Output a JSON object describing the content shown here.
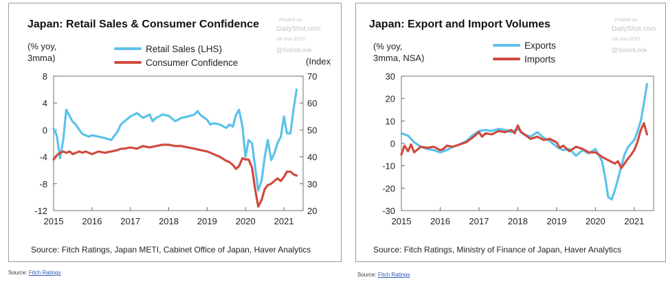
{
  "panels": [
    {
      "title": "Japan: Retail Sales & Consumer Confidence",
      "left_unit_lines": [
        "(% yoy,",
        "3mma)"
      ],
      "right_unit": "(Index)",
      "source": "Source: Fitch Ratings, Japan METI, Cabinet Office of Japan, Haver Analytics",
      "watermark": [
        "Posted on",
        "DailyShot.com",
        "28-Jun-2021",
        "@SobelLook"
      ],
      "footer": {
        "prefix": "Source:",
        "link": "Fitch Ratings"
      }
    },
    {
      "title": "Japan: Export and Import Volumes",
      "left_unit_lines": [
        "(% yoy,",
        "3mma, NSA)"
      ],
      "source": "Source: Fitch Ratings, Ministry of Finance of Japan, Haver Analytics",
      "watermark": [
        "Posted on",
        "DailyShot.com",
        "28-Jun-2021",
        "@SobelLook"
      ],
      "footer": {
        "prefix": "Source:",
        "link": "Fitch Ratings"
      }
    }
  ],
  "chart_data": [
    {
      "type": "line",
      "title": "Japan: Retail Sales & Consumer Confidence",
      "xlim": [
        2015.0,
        2021.5
      ],
      "x_ticks": [
        2015,
        2016,
        2017,
        2018,
        2019,
        2020,
        2021
      ],
      "ylim": [
        -12,
        8
      ],
      "y_ticks": [
        -12,
        -8,
        -4,
        0,
        4,
        8
      ],
      "y2lim": [
        20,
        70
      ],
      "y2_ticks": [
        20,
        30,
        40,
        50,
        60,
        70
      ],
      "grid": false,
      "legend": "top-center",
      "series": [
        {
          "name": "Retail Sales (LHS)",
          "axis": "left",
          "color": "#5bc2ea",
          "x": [
            2015.0,
            2015.08,
            2015.17,
            2015.25,
            2015.33,
            2015.42,
            2015.5,
            2015.58,
            2015.67,
            2015.75,
            2015.83,
            2015.92,
            2016.0,
            2016.17,
            2016.33,
            2016.5,
            2016.67,
            2016.75,
            2016.83,
            2017.0,
            2017.17,
            2017.33,
            2017.5,
            2017.58,
            2017.67,
            2017.75,
            2017.83,
            2018.0,
            2018.17,
            2018.33,
            2018.5,
            2018.67,
            2018.75,
            2018.83,
            2019.0,
            2019.08,
            2019.17,
            2019.33,
            2019.5,
            2019.58,
            2019.67,
            2019.75,
            2019.83,
            2019.92,
            2020.0,
            2020.08,
            2020.17,
            2020.25,
            2020.33,
            2020.42,
            2020.5,
            2020.58,
            2020.67,
            2020.75,
            2020.83,
            2020.92,
            2021.0,
            2021.08,
            2021.17,
            2021.25,
            2021.33
          ],
          "values": [
            0.2,
            -0.8,
            -4.2,
            -1.5,
            3.0,
            2.0,
            1.2,
            0.8,
            0.0,
            -0.6,
            -0.8,
            -1.0,
            -0.8,
            -1.0,
            -1.2,
            -1.5,
            -0.2,
            0.8,
            1.2,
            2.0,
            2.5,
            1.8,
            2.3,
            1.3,
            1.8,
            2.0,
            2.3,
            2.1,
            1.3,
            1.8,
            2.0,
            2.3,
            2.8,
            2.2,
            1.5,
            0.8,
            1.0,
            0.8,
            0.3,
            0.8,
            0.5,
            2.2,
            3.0,
            0.5,
            -4.0,
            -1.5,
            -2.0,
            -5.5,
            -9.0,
            -7.5,
            -4.0,
            -1.5,
            -4.5,
            -3.5,
            -2.0,
            -1.0,
            2.0,
            -0.5,
            -0.5,
            3.0,
            6.0
          ]
        },
        {
          "name": "Consumer Confidence",
          "axis": "right",
          "color": "#d04a3e",
          "x": [
            2015.0,
            2015.08,
            2015.17,
            2015.25,
            2015.33,
            2015.42,
            2015.5,
            2015.58,
            2015.67,
            2015.75,
            2015.83,
            2015.92,
            2016.0,
            2016.17,
            2016.33,
            2016.5,
            2016.67,
            2016.75,
            2016.83,
            2017.0,
            2017.17,
            2017.33,
            2017.5,
            2017.67,
            2017.83,
            2018.0,
            2018.17,
            2018.33,
            2018.5,
            2018.67,
            2018.83,
            2019.0,
            2019.17,
            2019.33,
            2019.5,
            2019.58,
            2019.67,
            2019.75,
            2019.83,
            2019.92,
            2020.0,
            2020.08,
            2020.17,
            2020.25,
            2020.33,
            2020.42,
            2020.5,
            2020.58,
            2020.67,
            2020.75,
            2020.83,
            2020.92,
            2021.0,
            2021.08,
            2021.17,
            2021.25,
            2021.33
          ],
          "values": [
            39.0,
            40.5,
            41.5,
            42.0,
            41.5,
            42.0,
            41.0,
            41.5,
            42.0,
            41.5,
            42.0,
            41.5,
            41.0,
            42.0,
            41.5,
            42.0,
            42.5,
            43.0,
            43.0,
            43.5,
            43.0,
            44.0,
            43.5,
            44.0,
            44.5,
            44.5,
            44.0,
            44.0,
            43.5,
            43.0,
            42.5,
            42.0,
            41.0,
            40.0,
            38.5,
            38.0,
            37.0,
            35.5,
            36.5,
            39.5,
            39.0,
            39.0,
            36.0,
            28.0,
            21.5,
            24.0,
            28.0,
            29.5,
            30.0,
            31.0,
            32.0,
            31.0,
            32.5,
            34.5,
            34.5,
            33.5,
            33.0
          ]
        }
      ]
    },
    {
      "type": "line",
      "title": "Japan: Export and Import Volumes",
      "xlim": [
        2015.0,
        2021.5
      ],
      "x_ticks": [
        2015,
        2016,
        2017,
        2018,
        2019,
        2020,
        2021
      ],
      "ylim": [
        -30,
        30
      ],
      "y_ticks": [
        -30,
        -20,
        -10,
        0,
        10,
        20,
        30
      ],
      "grid": false,
      "legend": "top-center",
      "series": [
        {
          "name": "Exports",
          "color": "#5bc2ea",
          "x": [
            2015.0,
            2015.17,
            2015.33,
            2015.5,
            2015.67,
            2015.83,
            2016.0,
            2016.17,
            2016.33,
            2016.5,
            2016.67,
            2016.83,
            2017.0,
            2017.17,
            2017.33,
            2017.5,
            2017.67,
            2017.83,
            2018.0,
            2018.17,
            2018.33,
            2018.5,
            2018.67,
            2018.83,
            2019.0,
            2019.17,
            2019.33,
            2019.5,
            2019.67,
            2019.83,
            2020.0,
            2020.08,
            2020.17,
            2020.25,
            2020.33,
            2020.42,
            2020.5,
            2020.58,
            2020.67,
            2020.75,
            2020.83,
            2020.92,
            2021.0,
            2021.08,
            2021.17,
            2021.25,
            2021.33
          ],
          "values": [
            4.5,
            3.5,
            0.5,
            -1.5,
            -2.5,
            -3.0,
            -4.0,
            -3.0,
            -1.5,
            -0.5,
            1.0,
            3.5,
            5.5,
            6.0,
            5.5,
            6.5,
            6.0,
            5.0,
            6.5,
            4.0,
            3.0,
            5.0,
            2.5,
            1.0,
            -1.5,
            -3.0,
            -2.5,
            -5.5,
            -3.0,
            -4.5,
            -2.5,
            -5.0,
            -8.0,
            -15.0,
            -24.0,
            -25.0,
            -21.0,
            -16.0,
            -10.0,
            -5.0,
            -2.0,
            0.0,
            1.5,
            5.0,
            10.0,
            18.0,
            26.5
          ]
        },
        {
          "name": "Imports",
          "color": "#d04a3e",
          "x": [
            2015.0,
            2015.08,
            2015.17,
            2015.25,
            2015.33,
            2015.5,
            2015.67,
            2015.83,
            2016.0,
            2016.08,
            2016.17,
            2016.33,
            2016.5,
            2016.67,
            2016.83,
            2017.0,
            2017.08,
            2017.17,
            2017.33,
            2017.5,
            2017.67,
            2017.83,
            2017.92,
            2018.0,
            2018.08,
            2018.17,
            2018.33,
            2018.5,
            2018.67,
            2018.83,
            2019.0,
            2019.08,
            2019.17,
            2019.33,
            2019.5,
            2019.67,
            2019.83,
            2020.0,
            2020.17,
            2020.33,
            2020.5,
            2020.58,
            2020.67,
            2020.75,
            2020.83,
            2020.92,
            2021.0,
            2021.08,
            2021.17,
            2021.25,
            2021.33
          ],
          "values": [
            -5.0,
            -1.0,
            -3.5,
            -0.5,
            -4.0,
            -1.5,
            -2.0,
            -1.5,
            -3.0,
            -2.5,
            -1.0,
            -1.5,
            -0.5,
            0.5,
            2.5,
            5.0,
            3.0,
            4.5,
            4.0,
            5.5,
            5.0,
            6.0,
            4.5,
            8.0,
            5.0,
            4.0,
            2.0,
            3.0,
            1.5,
            2.0,
            0.5,
            -2.0,
            -1.0,
            -3.5,
            -1.5,
            -2.5,
            -4.0,
            -4.0,
            -6.0,
            -7.5,
            -9.0,
            -8.0,
            -11.0,
            -9.0,
            -7.0,
            -5.0,
            -3.0,
            0.5,
            6.0,
            9.0,
            4.0
          ]
        }
      ]
    }
  ]
}
